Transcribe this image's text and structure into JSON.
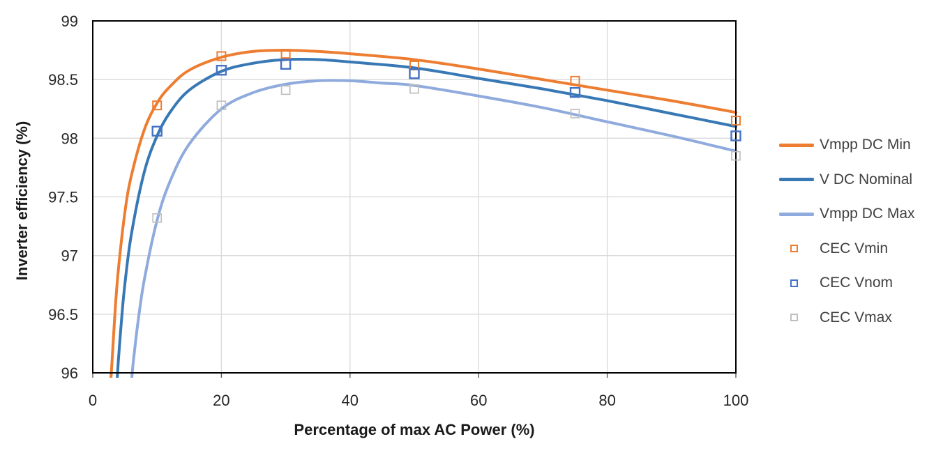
{
  "chart_data": {
    "type": "line+scatter",
    "title": "",
    "xlabel": "Percentage of max AC Power (%)",
    "ylabel": "Inverter efficiency (%)",
    "xlim": [
      0,
      100
    ],
    "ylim": [
      96,
      99
    ],
    "x_ticks": [
      0,
      20,
      40,
      60,
      80,
      100
    ],
    "x_tick_labels": [
      "0",
      "20",
      "40",
      "60",
      "80",
      "100"
    ],
    "y_ticks": [
      96,
      96.5,
      97,
      97.5,
      98,
      98.5,
      99
    ],
    "y_tick_labels": [
      "96",
      "96.5",
      "97",
      "97.5",
      "98",
      "98.5",
      "99"
    ],
    "grid": true,
    "legend_position": "right",
    "line_series": [
      {
        "name": "Vmpp DC Min",
        "color": "#ED7D31",
        "points": [
          [
            2.7,
            95.85
          ],
          [
            3,
            96.1
          ],
          [
            3.5,
            96.55
          ],
          [
            4,
            96.89
          ],
          [
            5,
            97.37
          ],
          [
            6,
            97.68
          ],
          [
            8,
            98.07
          ],
          [
            10,
            98.3
          ],
          [
            12,
            98.44
          ],
          [
            15,
            98.58
          ],
          [
            20,
            98.69
          ],
          [
            25,
            98.74
          ],
          [
            30,
            98.75
          ],
          [
            35,
            98.74
          ],
          [
            40,
            98.72
          ],
          [
            50,
            98.67
          ],
          [
            60,
            98.59
          ],
          [
            70,
            98.5
          ],
          [
            80,
            98.41
          ],
          [
            90,
            98.32
          ],
          [
            100,
            98.22
          ]
        ]
      },
      {
        "name": "V DC Nominal",
        "color": "#3878B4",
        "points": [
          [
            3.7,
            95.87
          ],
          [
            4,
            96.12
          ],
          [
            4.5,
            96.47
          ],
          [
            5,
            96.76
          ],
          [
            6,
            97.18
          ],
          [
            8,
            97.71
          ],
          [
            10,
            98.02
          ],
          [
            12,
            98.22
          ],
          [
            15,
            98.41
          ],
          [
            20,
            98.57
          ],
          [
            25,
            98.64
          ],
          [
            30,
            98.67
          ],
          [
            35,
            98.67
          ],
          [
            40,
            98.65
          ],
          [
            50,
            98.6
          ],
          [
            60,
            98.51
          ],
          [
            70,
            98.42
          ],
          [
            80,
            98.32
          ],
          [
            90,
            98.21
          ],
          [
            100,
            98.1
          ]
        ]
      },
      {
        "name": "Vmpp DC Max",
        "color": "#8FAADC",
        "points": [
          [
            5.9,
            95.85
          ],
          [
            6.2,
            96.04
          ],
          [
            6.5,
            96.19
          ],
          [
            7,
            96.42
          ],
          [
            8,
            96.79
          ],
          [
            10,
            97.3
          ],
          [
            12,
            97.63
          ],
          [
            15,
            97.95
          ],
          [
            20,
            98.25
          ],
          [
            25,
            98.39
          ],
          [
            30,
            98.46
          ],
          [
            35,
            98.49
          ],
          [
            40,
            98.49
          ],
          [
            45,
            98.47
          ],
          [
            50,
            98.45
          ],
          [
            60,
            98.36
          ],
          [
            70,
            98.26
          ],
          [
            80,
            98.14
          ],
          [
            90,
            98.02
          ],
          [
            100,
            97.89
          ]
        ]
      }
    ],
    "scatter_series": [
      {
        "name": "CEC Vmin",
        "color": "#ED7D31",
        "marker": "open-square",
        "points": [
          [
            10,
            98.28
          ],
          [
            20,
            98.7
          ],
          [
            30,
            98.72
          ],
          [
            50,
            98.62
          ],
          [
            75,
            98.49
          ],
          [
            100,
            98.15
          ]
        ]
      },
      {
        "name": "CEC Vnom",
        "color": "#4472C4",
        "marker": "open-square",
        "points": [
          [
            10,
            98.06
          ],
          [
            20,
            98.58
          ],
          [
            30,
            98.63
          ],
          [
            50,
            98.55
          ],
          [
            75,
            98.39
          ],
          [
            100,
            98.02
          ]
        ]
      },
      {
        "name": "CEC Vmax",
        "color": "#BFBFBF",
        "marker": "open-square",
        "points": [
          [
            10,
            97.32
          ],
          [
            20,
            98.28
          ],
          [
            30,
            98.41
          ],
          [
            50,
            98.42
          ],
          [
            75,
            98.21
          ],
          [
            100,
            97.85
          ]
        ]
      }
    ],
    "colors": {
      "background": "#FFFFFF",
      "grid": "#D9D9D9",
      "axis_border": "#000000",
      "tick_mark": "#595959",
      "tick_label": "#262626",
      "axis_title": "#1A1A1A",
      "legend_text": "#404040"
    }
  }
}
